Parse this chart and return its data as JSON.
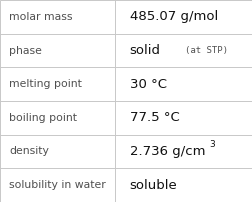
{
  "rows": [
    {
      "label": "molar mass",
      "value": "485.07 g/mol",
      "type": "simple"
    },
    {
      "label": "phase",
      "value": "solid",
      "type": "phase",
      "sub": "(at STP)"
    },
    {
      "label": "melting point",
      "value": "30 °C",
      "type": "simple"
    },
    {
      "label": "boiling point",
      "value": "77.5 °C",
      "type": "simple"
    },
    {
      "label": "density",
      "value": "2.736 g/cm",
      "type": "density",
      "sup": "3"
    },
    {
      "label": "solubility in water",
      "value": "soluble",
      "type": "simple"
    }
  ],
  "bg_color": "#ffffff",
  "line_color": "#c8c8c8",
  "label_color": "#505050",
  "value_color": "#111111",
  "sub_color": "#505050",
  "label_fontsize": 7.8,
  "value_fontsize": 9.5,
  "sub_fontsize": 6.5,
  "sup_fontsize": 6.5,
  "col_split": 0.455,
  "figsize": [
    2.52,
    2.02
  ],
  "dpi": 100
}
